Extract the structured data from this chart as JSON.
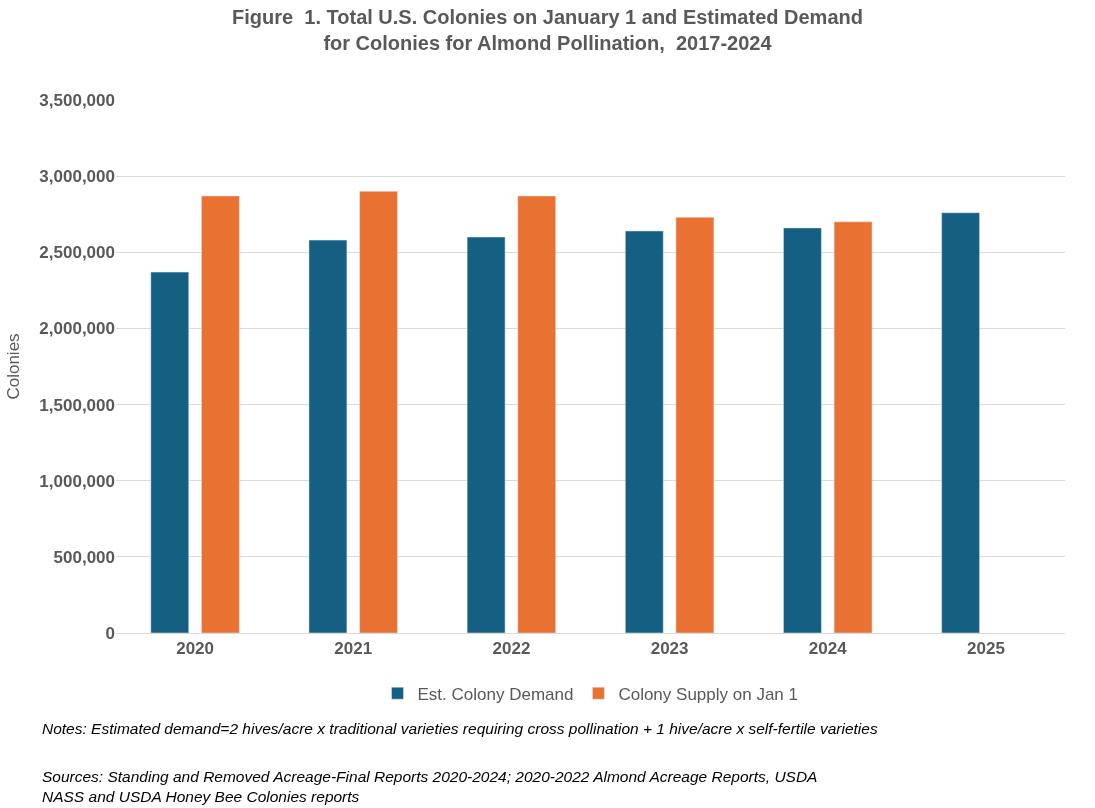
{
  "chart_data": {
    "type": "bar",
    "title": "Figure  1. Total U.S. Colonies on January 1 and Estimated Demand\nfor Colonies for Almond Pollination,  2017-2024",
    "ylabel": "Colonies",
    "categories": [
      "2020",
      "2021",
      "2022",
      "2023",
      "2024",
      "2025"
    ],
    "series": [
      {
        "name": "Est. Colony Demand",
        "color": "#156082",
        "values": [
          2370000,
          2580000,
          2600000,
          2640000,
          2660000,
          2760000
        ]
      },
      {
        "name": "Colony Supply on Jan 1",
        "color": "#e97132",
        "values": [
          2870000,
          2900000,
          2870000,
          2730000,
          2700000,
          null
        ]
      }
    ],
    "ylim": [
      0,
      3500000
    ],
    "yticks": [
      {
        "value": 0,
        "label": "0"
      },
      {
        "value": 500000,
        "label": "500,000"
      },
      {
        "value": 1000000,
        "label": "1,000,000"
      },
      {
        "value": 1500000,
        "label": "1,500,000"
      },
      {
        "value": 2000000,
        "label": "2,000,000"
      },
      {
        "value": 2500000,
        "label": "2,500,000"
      },
      {
        "value": 3000000,
        "label": "3,000,000"
      },
      {
        "value": 3500000,
        "label": "3,500,000"
      }
    ],
    "grid": "y",
    "legend": "bottom",
    "annotations": [
      "Notes: Estimated demand=2 hives/acre x traditional varieties requiring cross pollination + 1 hive/acre x self-fertile varieties",
      "Sources: Standing and Removed Acreage-Final Reports 2020-2024; 2020-2022 Almond Acreage Reports, USDA\nNASS and USDA Honey Bee Colonies reports"
    ]
  }
}
